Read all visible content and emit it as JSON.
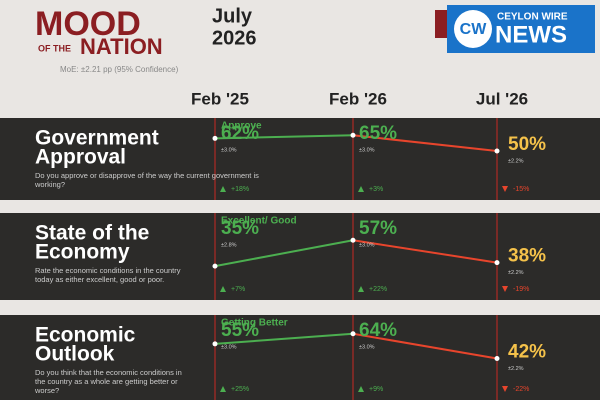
{
  "header": {
    "title_line1": "MOOD",
    "title_line2a": "OF THE",
    "title_line2b": "NATION",
    "date_line1": "July",
    "date_line2": "2026",
    "moe": "MoE: ±2.21 pp (95% Confidence)",
    "logo_mark": "CW",
    "logo_top": "CEYLON WIRE",
    "logo_bottom": "NEWS"
  },
  "columns": [
    "Feb '25",
    "Feb '26",
    "Jul '26"
  ],
  "chart_data": [
    {
      "type": "line",
      "title_line1": "Government",
      "title_line2": "Approval",
      "subtitle": "Do you approve or disapprove of the way the current government is working?",
      "label": "Approve",
      "values": [
        62,
        65,
        50
      ],
      "value_labels": [
        "62%",
        "65%",
        "50%"
      ],
      "moe_labels": [
        "±3.0%",
        "±3.0%",
        "±2.2%"
      ],
      "changes": [
        {
          "value": 18,
          "label": "+18%"
        },
        {
          "value": 3,
          "label": "+3%"
        },
        {
          "value": -15,
          "label": "-15%"
        }
      ],
      "ylim": [
        30,
        70
      ],
      "rise_color": "#4caf50",
      "fall_color": "#e8452c",
      "last_color": "#f5c24a"
    },
    {
      "type": "line",
      "title_line1": "State of the",
      "title_line2": "Economy",
      "subtitle": "Rate the economic conditions in the country today as either excellent, good or poor.",
      "label": "Excellent/ Good",
      "values": [
        35,
        57,
        38
      ],
      "value_labels": [
        "35%",
        "57%",
        "38%"
      ],
      "moe_labels": [
        "±2.8%",
        "±3.0%",
        "±2.2%"
      ],
      "changes": [
        {
          "value": 7,
          "label": "+7%"
        },
        {
          "value": 22,
          "label": "+22%"
        },
        {
          "value": -19,
          "label": "-19%"
        }
      ],
      "ylim": [
        30,
        70
      ],
      "rise_color": "#4caf50",
      "fall_color": "#e8452c",
      "last_color": "#f5c24a"
    },
    {
      "type": "line",
      "title_line1": "Economic",
      "title_line2": "Outlook",
      "subtitle": "Do you think that the economic conditions in the country as a whole are getting better or worse?",
      "label": "Getting Better",
      "values": [
        55,
        64,
        42
      ],
      "value_labels": [
        "55%",
        "64%",
        "42%"
      ],
      "moe_labels": [
        "±3.0%",
        "±3.0%",
        "±2.2%"
      ],
      "changes": [
        {
          "value": 25,
          "label": "+25%"
        },
        {
          "value": 9,
          "label": "+9%"
        },
        {
          "value": -22,
          "label": "-22%"
        }
      ],
      "ylim": [
        30,
        70
      ],
      "rise_color": "#4caf50",
      "fall_color": "#e8452c",
      "last_color": "#f5c24a"
    }
  ]
}
